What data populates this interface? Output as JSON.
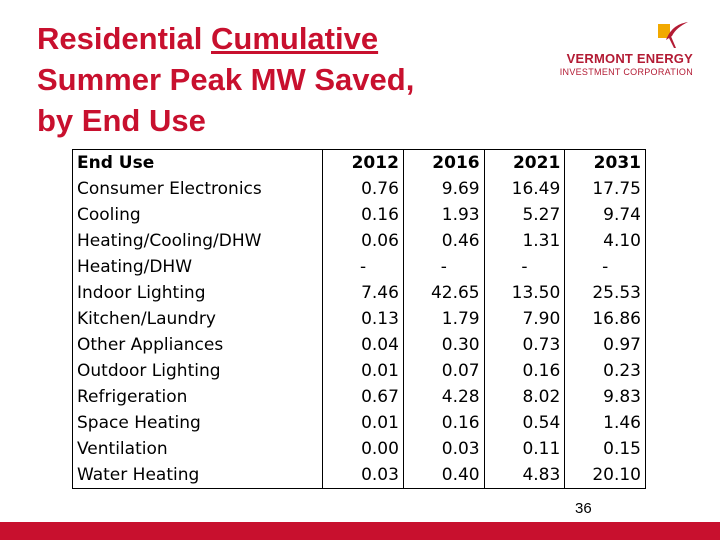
{
  "slide": {
    "title_line1_pre": "Residential ",
    "title_line1_underlined": "Cumulative",
    "title_line2": "Summer Peak MW Saved,",
    "title_line3": "by End Use",
    "page_number": "36"
  },
  "logo": {
    "name": "VERMONT ENERGY",
    "subtitle": "INVESTMENT CORPORATION"
  },
  "colors": {
    "accent": "#c8102e",
    "logo_red": "#b31b34",
    "logo_gold": "#f2a900"
  },
  "table": {
    "headers": [
      "End Use",
      "2012",
      "2016",
      "2021",
      "2031"
    ],
    "rows": [
      [
        "Consumer Electronics",
        "0.76",
        "9.69",
        "16.49",
        "17.75"
      ],
      [
        "Cooling",
        "0.16",
        "1.93",
        "5.27",
        "9.74"
      ],
      [
        "Heating/Cooling/DHW",
        "0.06",
        "0.46",
        "1.31",
        "4.10"
      ],
      [
        "Heating/DHW",
        "-",
        "-",
        "-",
        "-"
      ],
      [
        "Indoor Lighting",
        "7.46",
        "42.65",
        "13.50",
        "25.53"
      ],
      [
        "Kitchen/Laundry",
        "0.13",
        "1.79",
        "7.90",
        "16.86"
      ],
      [
        "Other Appliances",
        "0.04",
        "0.30",
        "0.73",
        "0.97"
      ],
      [
        "Outdoor Lighting",
        "0.01",
        "0.07",
        "0.16",
        "0.23"
      ],
      [
        "Refrigeration",
        "0.67",
        "4.28",
        "8.02",
        "9.83"
      ],
      [
        "Space Heating",
        "0.01",
        "0.16",
        "0.54",
        "1.46"
      ],
      [
        "Ventilation",
        "0.00",
        "0.03",
        "0.11",
        "0.15"
      ],
      [
        "Water Heating",
        "0.03",
        "0.40",
        "4.83",
        "20.10"
      ]
    ]
  }
}
